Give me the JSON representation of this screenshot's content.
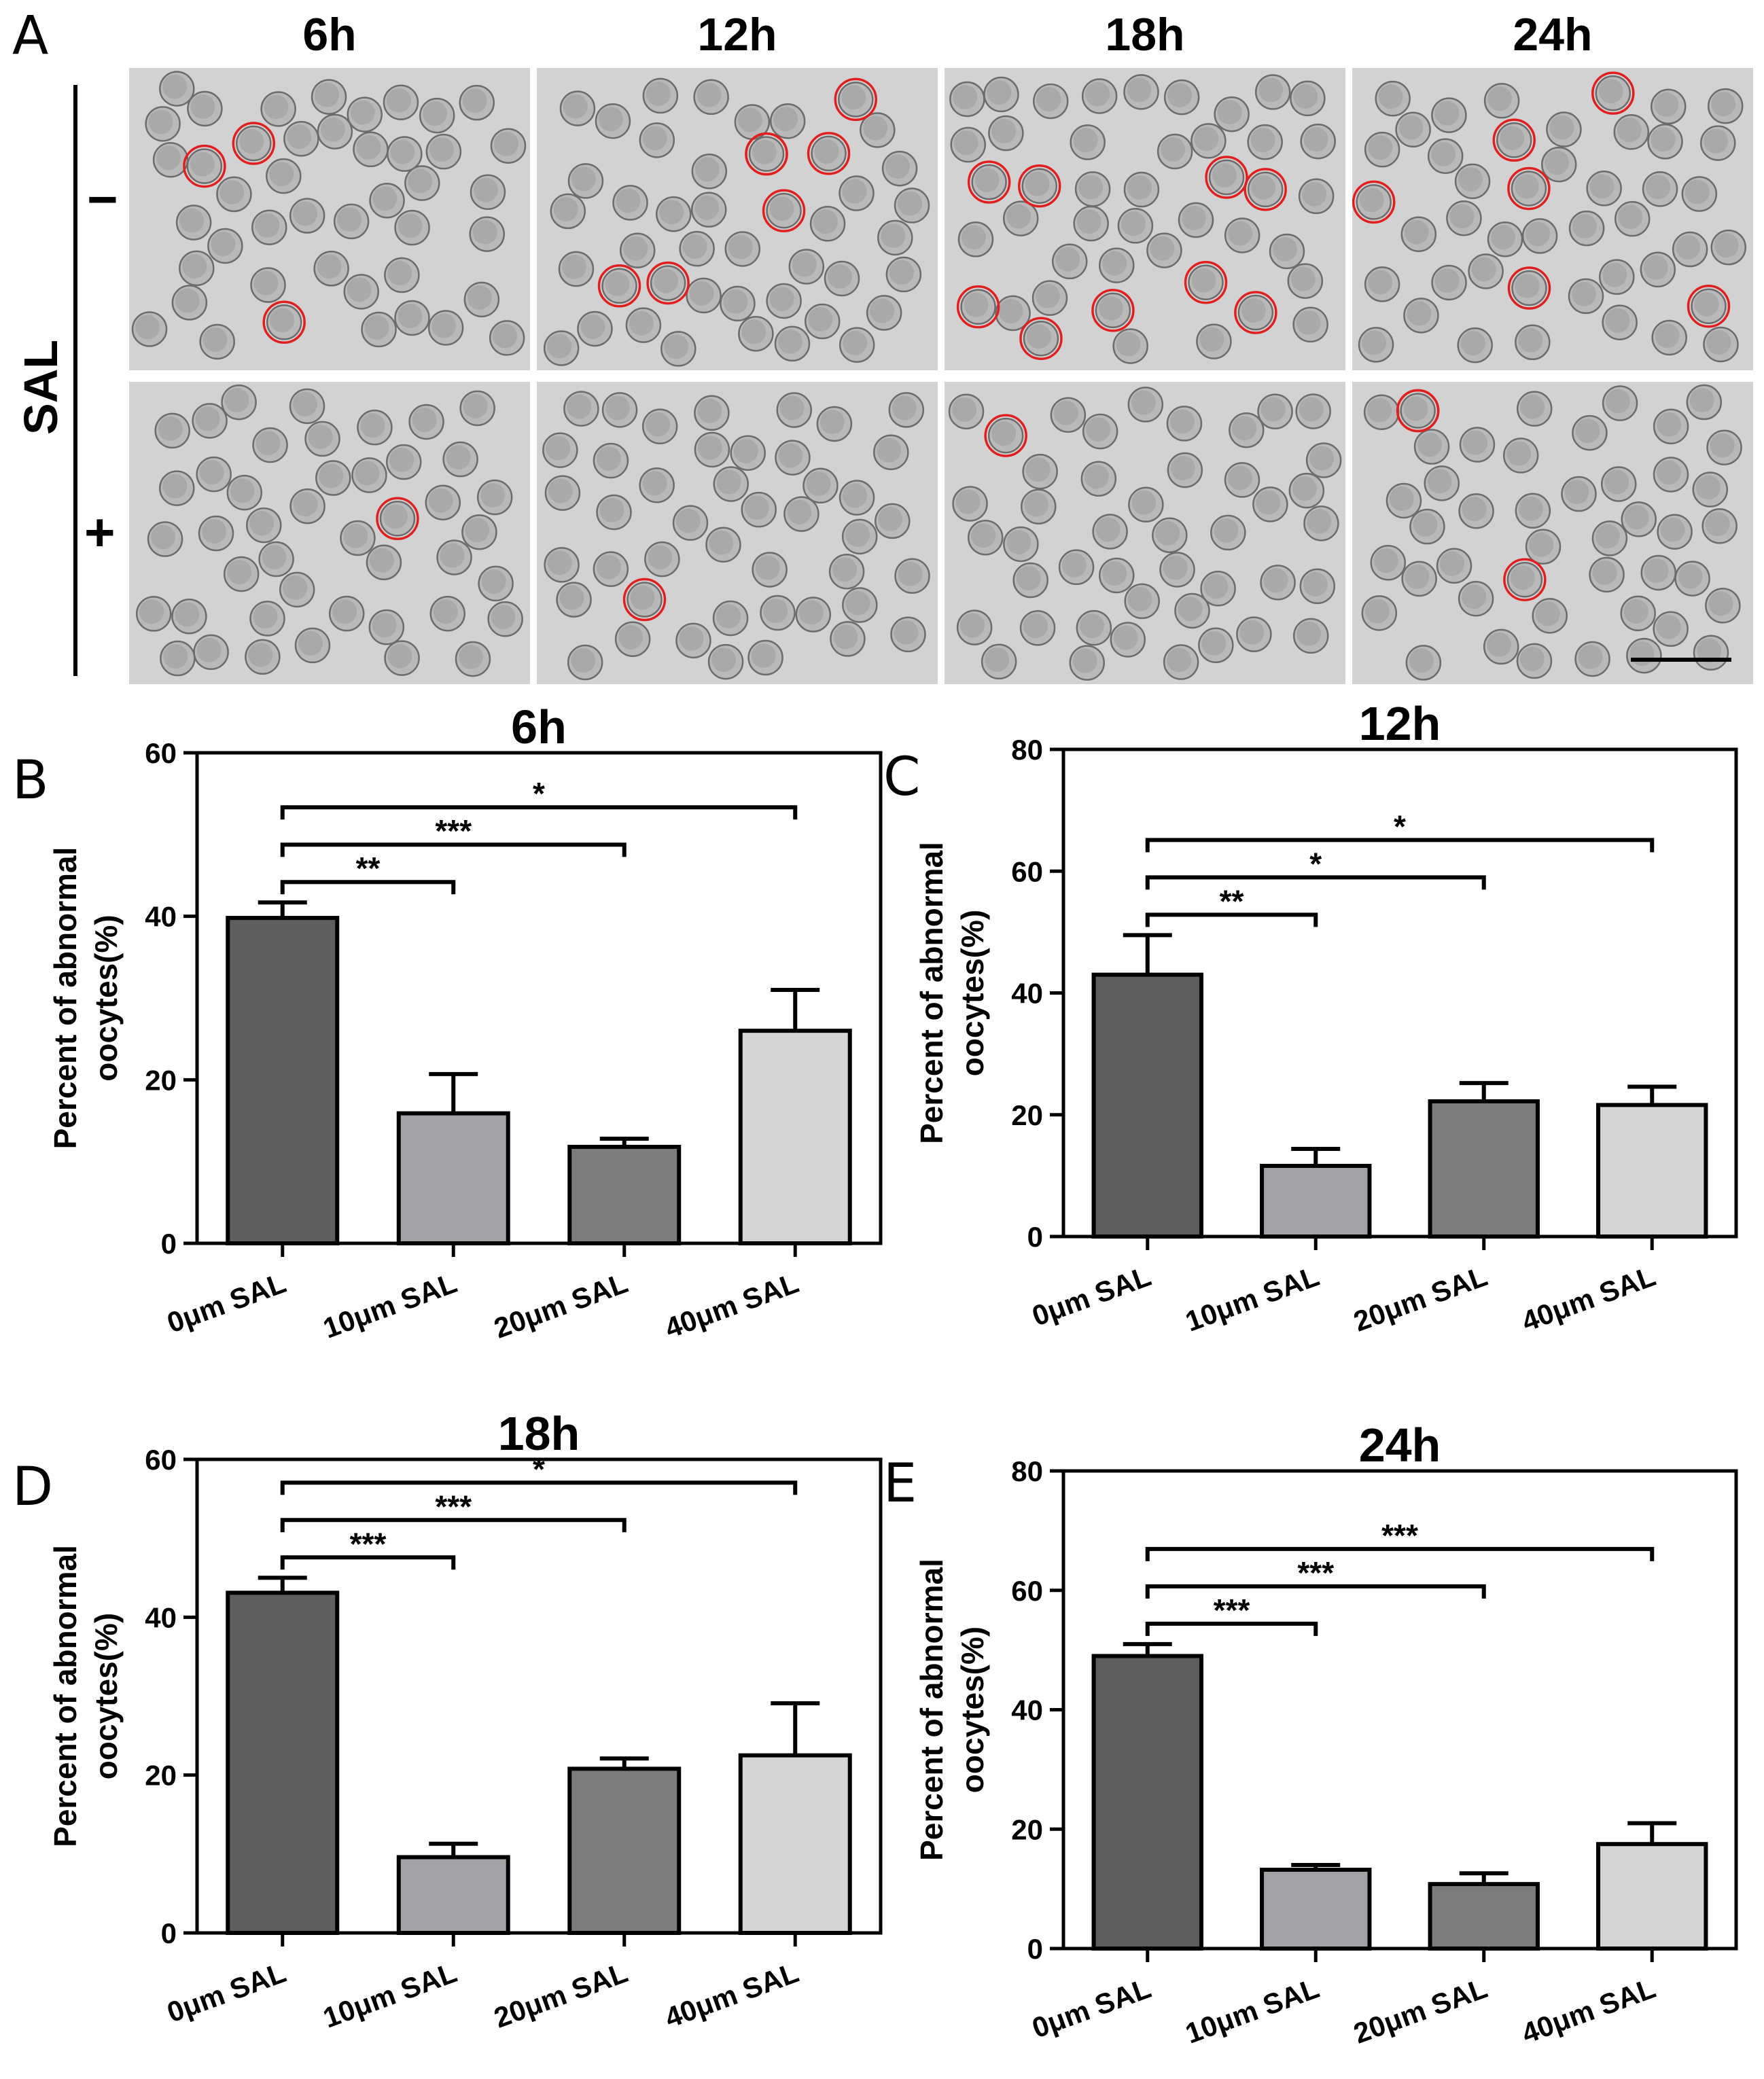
{
  "panel_a": {
    "letter": "A",
    "row_label": "SAL",
    "row_signs": [
      "−",
      "+"
    ],
    "columns": [
      "6h",
      "12h",
      "18h",
      "24h"
    ]
  },
  "chart_data": [
    {
      "panel": "B",
      "type": "bar",
      "title": "6h",
      "categories": [
        "0μm SAL",
        "10μm SAL",
        "20μm SAL",
        "40μm SAL"
      ],
      "values": [
        39.8,
        15.9,
        11.8,
        26.0
      ],
      "errors": [
        1.9,
        4.8,
        1.0,
        5.0
      ],
      "ylabel": [
        "Percent of abnormal",
        "oocytes(%)"
      ],
      "ylim": [
        0,
        60
      ],
      "yticks": [
        0,
        20,
        40,
        60
      ],
      "colors": [
        "#5e5e5e",
        "#a3a3a7",
        "#7c7c7c",
        "#d5d5d5"
      ],
      "significance": [
        {
          "from": 0,
          "to": 1,
          "label": "**"
        },
        {
          "from": 0,
          "to": 2,
          "label": "***"
        },
        {
          "from": 0,
          "to": 3,
          "label": "*"
        }
      ]
    },
    {
      "panel": "C",
      "type": "bar",
      "title": "12h",
      "categories": [
        "0μm SAL",
        "10μm SAL",
        "20μm SAL",
        "40μm SAL"
      ],
      "values": [
        43.0,
        11.6,
        22.2,
        21.6
      ],
      "errors": [
        6.5,
        2.8,
        3.0,
        3.0
      ],
      "ylabel": [
        "Percent of abnormal",
        "oocytes(%)"
      ],
      "ylim": [
        0,
        80
      ],
      "yticks": [
        0,
        20,
        40,
        60,
        80
      ],
      "colors": [
        "#5e5e5e",
        "#a3a3a7",
        "#7c7c7c",
        "#d5d5d5"
      ],
      "significance": [
        {
          "from": 0,
          "to": 1,
          "label": "**"
        },
        {
          "from": 0,
          "to": 2,
          "label": "*"
        },
        {
          "from": 0,
          "to": 3,
          "label": "*"
        }
      ]
    },
    {
      "panel": "D",
      "type": "bar",
      "title": "18h",
      "categories": [
        "0μm SAL",
        "10μm SAL",
        "20μm SAL",
        "40μm SAL"
      ],
      "values": [
        43.1,
        9.6,
        20.8,
        22.5
      ],
      "errors": [
        1.9,
        1.7,
        1.3,
        6.6
      ],
      "ylabel": [
        "Percent of abnormal",
        "oocytes(%)"
      ],
      "ylim": [
        0,
        60
      ],
      "yticks": [
        0,
        20,
        40,
        60
      ],
      "colors": [
        "#5e5e5e",
        "#a3a3a7",
        "#7c7c7c",
        "#d5d5d5"
      ],
      "significance": [
        {
          "from": 0,
          "to": 1,
          "label": "***"
        },
        {
          "from": 0,
          "to": 2,
          "label": "***"
        },
        {
          "from": 0,
          "to": 3,
          "label": "*"
        }
      ]
    },
    {
      "panel": "E",
      "type": "bar",
      "title": "24h",
      "categories": [
        "0μm SAL",
        "10μm SAL",
        "20μm SAL",
        "40μm SAL"
      ],
      "values": [
        49.0,
        13.2,
        10.8,
        17.5
      ],
      "errors": [
        2.0,
        0.8,
        1.8,
        3.5
      ],
      "ylabel": [
        "Percent of abnormal",
        "oocytes(%)"
      ],
      "ylim": [
        0,
        80
      ],
      "yticks": [
        0,
        20,
        40,
        60,
        80
      ],
      "colors": [
        "#5e5e5e",
        "#a3a3a7",
        "#7c7c7c",
        "#d5d5d5"
      ],
      "significance": [
        {
          "from": 0,
          "to": 1,
          "label": "***"
        },
        {
          "from": 0,
          "to": 2,
          "label": "***"
        },
        {
          "from": 0,
          "to": 3,
          "label": "***"
        }
      ]
    }
  ]
}
